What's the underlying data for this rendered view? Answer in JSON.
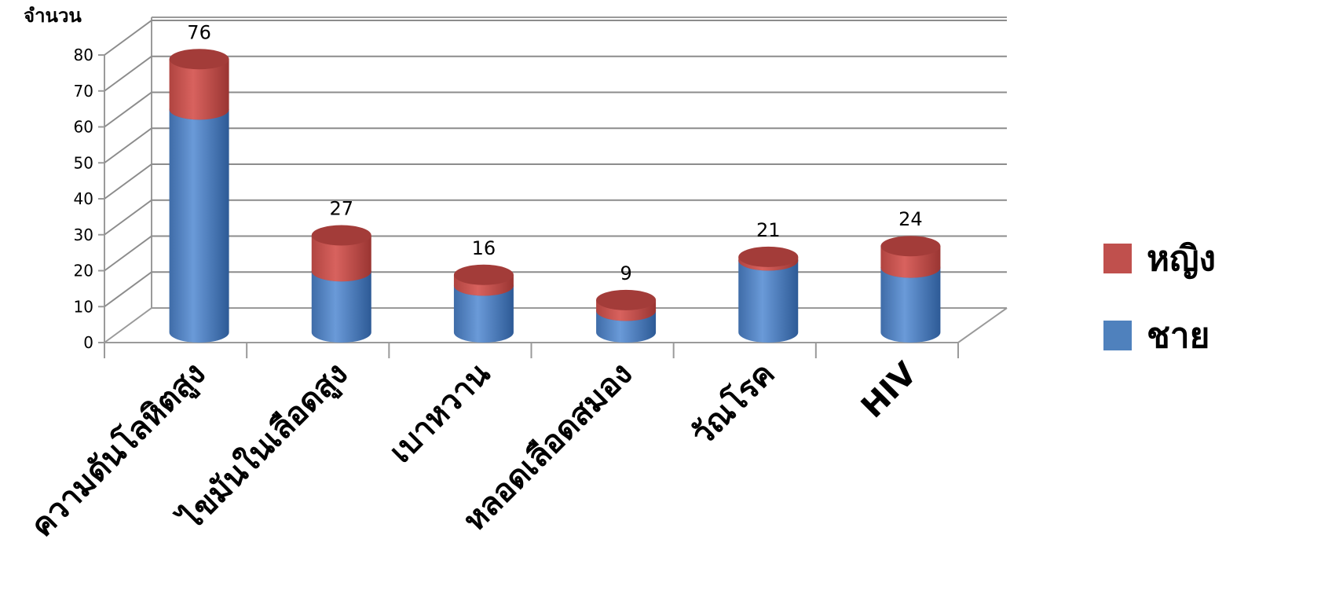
{
  "chart_data": {
    "type": "bar",
    "stacked": true,
    "three_d": true,
    "ylabel": "จำนวน",
    "ylim": [
      0,
      80
    ],
    "yticks": [
      0,
      10,
      20,
      30,
      40,
      50,
      60,
      70,
      80
    ],
    "grid": true,
    "legend_position": "right",
    "categories": [
      "ความดันโลหิตสูง",
      "ไขมันในเลือดสูง",
      "เบาหวาน",
      "หลอดเลือดสมอง",
      "วัณโรค",
      "HIV"
    ],
    "series": [
      {
        "name": "ชาย",
        "color": "#4F81BD",
        "values": [
          62,
          17,
          13,
          6,
          20,
          18
        ]
      },
      {
        "name": "หญิง",
        "color": "#C0504D",
        "values": [
          14,
          10,
          3,
          3,
          1,
          6
        ]
      }
    ],
    "totals": [
      "76",
      "27",
      "16",
      "9",
      "21",
      "24"
    ]
  }
}
